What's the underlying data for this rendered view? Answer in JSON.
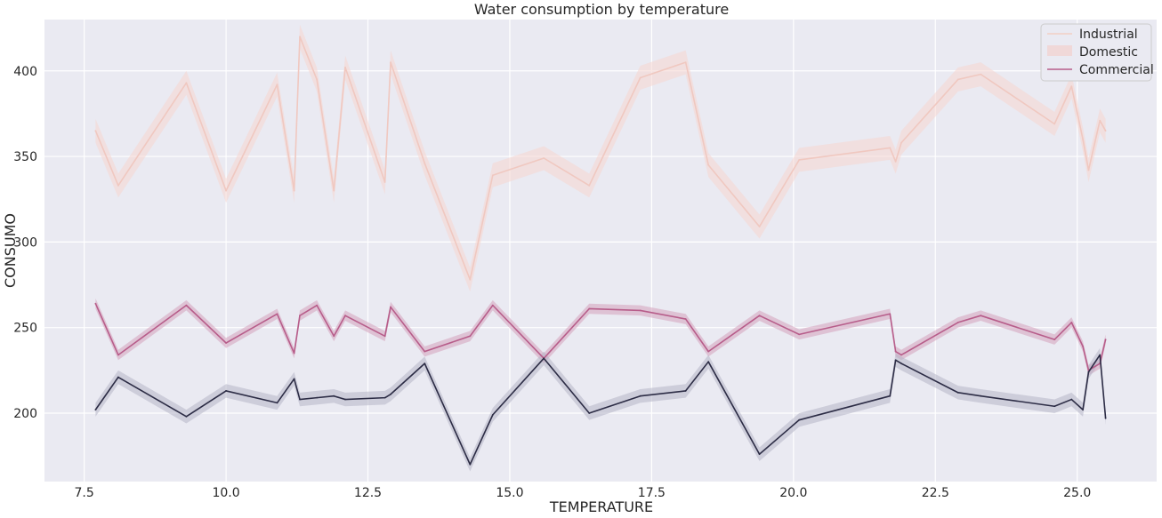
{
  "chart_data": {
    "type": "line",
    "title": "Water consumption by temperature",
    "xlabel": "TEMPERATURE",
    "ylabel": "CONSUMO",
    "xlim": [
      6.8,
      26.4
    ],
    "ylim": [
      160,
      430
    ],
    "xticks": [
      7.5,
      10.0,
      12.5,
      15.0,
      17.5,
      20.0,
      22.5,
      25.0
    ],
    "xtick_labels": [
      "7.5",
      "10.0",
      "12.5",
      "15.0",
      "17.5",
      "20.0",
      "22.5",
      "25.0"
    ],
    "yticks": [
      200,
      250,
      300,
      350,
      400
    ],
    "ytick_labels": [
      "200",
      "250",
      "300",
      "350",
      "400"
    ],
    "grid": true,
    "legend_position": "top-right",
    "background_color": "#eaeaf2",
    "legend": [
      {
        "label": "Industrial",
        "kind": "line",
        "color": "#f2cfc4"
      },
      {
        "label": "Domestic",
        "kind": "band",
        "color": "#f0d8d8"
      },
      {
        "label": "Commercial",
        "kind": "line",
        "color": "#b75d8a"
      }
    ],
    "series": [
      {
        "name": "Industrial",
        "color": "#f0c8c0",
        "band_color": "#f6d6d0",
        "x": [
          7.7,
          8.1,
          9.3,
          10.0,
          10.9,
          11.2,
          11.3,
          11.6,
          11.9,
          12.1,
          12.8,
          12.9,
          13.5,
          14.3,
          14.7,
          15.6,
          16.4,
          17.3,
          18.1,
          18.5,
          19.4,
          20.1,
          21.7,
          21.8,
          21.9,
          22.9,
          23.3,
          24.6,
          24.9,
          25.1,
          25.2,
          25.4,
          25.5
        ],
        "values": [
          365,
          333,
          393,
          330,
          392,
          330,
          420,
          395,
          330,
          402,
          335,
          405,
          346,
          278,
          339,
          349,
          333,
          396,
          405,
          345,
          309,
          348,
          355,
          347,
          358,
          395,
          398,
          369,
          391,
          360,
          342,
          371,
          365
        ],
        "band_width": 7
      },
      {
        "name": "Commercial",
        "color": "#b75d8a",
        "band_color": "#d4a0bc",
        "x": [
          7.7,
          8.1,
          9.3,
          10.0,
          10.9,
          11.2,
          11.3,
          11.6,
          11.9,
          12.1,
          12.8,
          12.9,
          13.5,
          14.3,
          14.7,
          15.6,
          16.4,
          17.3,
          18.1,
          18.5,
          19.4,
          20.1,
          21.7,
          21.8,
          21.9,
          22.9,
          23.3,
          24.6,
          24.9,
          25.1,
          25.2,
          25.4,
          25.5
        ],
        "values": [
          264,
          234,
          263,
          241,
          258,
          235,
          257,
          263,
          245,
          257,
          245,
          262,
          236,
          245,
          263,
          232,
          261,
          260,
          255,
          236,
          257,
          246,
          258,
          236,
          234,
          253,
          257,
          243,
          253,
          239,
          225,
          229,
          243
        ],
        "band_width": 3
      },
      {
        "name": "",
        "color": "#2c2c45",
        "band_color": "#b4b4c6",
        "x": [
          7.7,
          8.1,
          9.3,
          10.0,
          10.9,
          11.2,
          11.3,
          11.6,
          11.9,
          12.1,
          12.8,
          12.9,
          13.5,
          14.3,
          14.7,
          15.6,
          16.4,
          17.3,
          18.1,
          18.5,
          19.4,
          20.1,
          21.7,
          21.8,
          21.9,
          22.9,
          23.3,
          24.6,
          24.9,
          25.1,
          25.2,
          25.4,
          25.5
        ],
        "values": [
          202,
          221,
          198,
          213,
          206,
          220,
          208,
          209,
          210,
          208,
          209,
          211,
          229,
          170,
          199,
          232,
          200,
          210,
          213,
          230,
          176,
          196,
          210,
          231,
          229,
          212,
          210,
          204,
          208,
          202,
          224,
          234,
          197
        ],
        "band_width": 4
      }
    ]
  }
}
